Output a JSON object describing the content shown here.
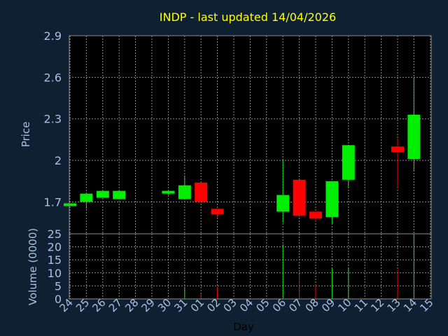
{
  "chart_data": {
    "type": "candlestick",
    "title": "INDP - last updated 14/04/2026",
    "xlabel": "Day",
    "price_panel": {
      "ylabel": "Price",
      "ylim": [
        1.47,
        2.9
      ],
      "yticks": [
        "2.9",
        "2.6",
        "2.3",
        "2",
        "1.7"
      ]
    },
    "volume_panel": {
      "ylabel": "Volume (0000)",
      "ylim": [
        0,
        25
      ],
      "yticks": [
        "25",
        "20",
        "15",
        "10",
        "5",
        "0"
      ]
    },
    "x_tick_labels": [
      "24",
      "25",
      "26",
      "27",
      "28",
      "29",
      "30",
      "31",
      "01",
      "02",
      "03",
      "04",
      "05",
      "06",
      "07",
      "08",
      "09",
      "10",
      "11",
      "12",
      "13",
      "14",
      "15"
    ],
    "candles": [
      {
        "day": "24",
        "open": 1.67,
        "high": 1.69,
        "low": 1.67,
        "close": 1.69,
        "volume": 0,
        "direction": "up"
      },
      {
        "day": "25",
        "open": 1.7,
        "high": 1.76,
        "low": 1.65,
        "close": 1.76,
        "volume": 0,
        "direction": "up"
      },
      {
        "day": "26",
        "open": 1.73,
        "high": 1.78,
        "low": 1.73,
        "close": 1.78,
        "volume": 0,
        "direction": "up"
      },
      {
        "day": "27",
        "open": 1.72,
        "high": 1.78,
        "low": 1.72,
        "close": 1.78,
        "volume": 0.3,
        "direction": "up"
      },
      {
        "day": "30",
        "open": 1.76,
        "high": 1.78,
        "low": 1.75,
        "close": 1.78,
        "volume": 0,
        "direction": "up"
      },
      {
        "day": "31",
        "open": 1.72,
        "high": 1.89,
        "low": 1.72,
        "close": 1.82,
        "volume": 4.5,
        "direction": "up"
      },
      {
        "day": "01",
        "open": 1.84,
        "high": 1.84,
        "low": 1.7,
        "close": 1.7,
        "volume": 2,
        "direction": "down"
      },
      {
        "day": "02",
        "open": 1.65,
        "high": 1.65,
        "low": 1.59,
        "close": 1.61,
        "volume": 4.5,
        "direction": "down"
      },
      {
        "day": "06",
        "open": 1.63,
        "high": 2.01,
        "low": 1.55,
        "close": 1.75,
        "volume": 21,
        "direction": "up"
      },
      {
        "day": "07",
        "open": 1.86,
        "high": 1.86,
        "low": 1.6,
        "close": 1.6,
        "volume": 9.5,
        "direction": "down"
      },
      {
        "day": "08",
        "open": 1.63,
        "high": 1.63,
        "low": 1.56,
        "close": 1.58,
        "volume": 5.5,
        "direction": "down"
      },
      {
        "day": "09",
        "open": 1.59,
        "high": 1.85,
        "low": 1.54,
        "close": 1.85,
        "volume": 12,
        "direction": "up"
      },
      {
        "day": "10",
        "open": 1.86,
        "high": 2.11,
        "low": 1.8,
        "close": 2.11,
        "volume": 12,
        "direction": "up"
      },
      {
        "day": "13",
        "open": 2.1,
        "high": 2.16,
        "low": 1.8,
        "close": 2.06,
        "volume": 11,
        "direction": "down"
      },
      {
        "day": "14",
        "open": 2.01,
        "high": 2.6,
        "low": 1.92,
        "close": 2.33,
        "volume": 24.5,
        "direction": "up"
      }
    ],
    "grid": true,
    "colors": {
      "background": "#102033",
      "panel": "#000000",
      "grid": "#8c8c8c",
      "axis_text": "#a9c1df",
      "title": "#ffff00",
      "up": "#00ee00",
      "down": "#ff0000"
    }
  }
}
